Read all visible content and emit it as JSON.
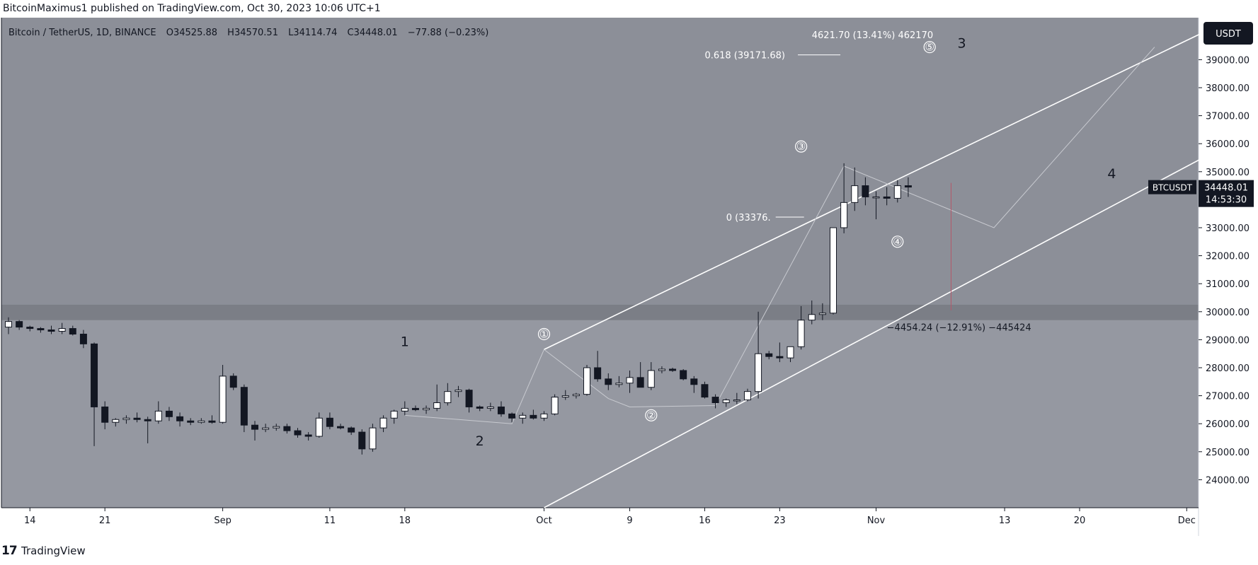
{
  "header": {
    "publish_line": "BitcoinMaximus1 published on TradingView.com, Oct 30, 2023 10:06 UTC+1"
  },
  "legend": {
    "symbol": "Bitcoin / TetherUS, 1D, BINANCE",
    "o_label": "O",
    "o_value": "34525.88",
    "h_label": "H",
    "h_value": "34570.51",
    "l_label": "L",
    "l_value": "34114.74",
    "c_label": "C",
    "c_value": "34448.01",
    "change": "−77.88 (−0.23%)"
  },
  "currency_button": "USDT",
  "price_label": {
    "ticker": "BTCUSDT",
    "price": "34448.01",
    "countdown": "14:53:30"
  },
  "footer": {
    "brand": "TradingView"
  },
  "colors": {
    "plot_bg": "#9598a1",
    "upper_bg": "#8c8f98",
    "support_band": "#7b7e86",
    "candle_up": "#ffffff",
    "candle_down": "#131722",
    "axis_bg": "#ffffff",
    "label_bg": "#131722"
  },
  "chart_data": {
    "type": "candlestick",
    "ylim": [
      23000,
      40500
    ],
    "y_ticks": [
      24000,
      25000,
      26000,
      27000,
      28000,
      29000,
      30000,
      31000,
      32000,
      33000,
      34000,
      35000,
      36000,
      37000,
      38000,
      39000
    ],
    "y_tick_labels": [
      "24000.00",
      "25000.00",
      "26000.00",
      "27000.00",
      "28000.00",
      "29000.00",
      "30000.00",
      "31000.00",
      "32000.00",
      "33000.00",
      "34000.00",
      "35000.00",
      "36000.00",
      "37000.00",
      "38000.00",
      "39000.00"
    ],
    "x_tick_labels": [
      {
        "day": 2,
        "label": "14"
      },
      {
        "day": 9,
        "label": "21"
      },
      {
        "day": 20,
        "label": "Sep"
      },
      {
        "day": 30,
        "label": "11"
      },
      {
        "day": 37,
        "label": "18"
      },
      {
        "day": 50,
        "label": "Oct"
      },
      {
        "day": 58,
        "label": "9"
      },
      {
        "day": 65,
        "label": "16"
      },
      {
        "day": 72,
        "label": "23"
      },
      {
        "day": 81,
        "label": "Nov"
      },
      {
        "day": 93,
        "label": "13"
      },
      {
        "day": 100,
        "label": "20"
      },
      {
        "day": 110,
        "label": "Dec"
      }
    ],
    "candles": [
      [
        29450,
        29800,
        29200,
        29650
      ],
      [
        29650,
        29700,
        29350,
        29450
      ],
      [
        29450,
        29500,
        29300,
        29400
      ],
      [
        29400,
        29450,
        29250,
        29350
      ],
      [
        29350,
        29500,
        29200,
        29300
      ],
      [
        29300,
        29600,
        29200,
        29400
      ],
      [
        29400,
        29500,
        29150,
        29200
      ],
      [
        29200,
        29350,
        28700,
        28850
      ],
      [
        28850,
        28900,
        25200,
        26600
      ],
      [
        26600,
        26800,
        25800,
        26050
      ],
      [
        26050,
        26200,
        25900,
        26150
      ],
      [
        26150,
        26300,
        26000,
        26200
      ],
      [
        26200,
        26400,
        26050,
        26150
      ],
      [
        26150,
        26250,
        25300,
        26100
      ],
      [
        26100,
        26800,
        26000,
        26450
      ],
      [
        26450,
        26600,
        26100,
        26250
      ],
      [
        26250,
        26400,
        25900,
        26100
      ],
      [
        26100,
        26200,
        25950,
        26050
      ],
      [
        26050,
        26200,
        26000,
        26100
      ],
      [
        26100,
        26300,
        26000,
        26050
      ],
      [
        26050,
        28100,
        26000,
        27700
      ],
      [
        27700,
        27800,
        27200,
        27300
      ],
      [
        27300,
        27400,
        25700,
        25950
      ],
      [
        25950,
        26100,
        25400,
        25800
      ],
      [
        25800,
        26000,
        25700,
        25850
      ],
      [
        25850,
        26000,
        25750,
        25900
      ],
      [
        25900,
        26000,
        25650,
        25750
      ],
      [
        25750,
        25850,
        25500,
        25600
      ],
      [
        25600,
        25700,
        25400,
        25550
      ],
      [
        25550,
        26400,
        25500,
        26200
      ],
      [
        26200,
        26400,
        25800,
        25900
      ],
      [
        25900,
        26000,
        25800,
        25850
      ],
      [
        25850,
        25900,
        25600,
        25700
      ],
      [
        25700,
        25800,
        24900,
        25100
      ],
      [
        25100,
        26000,
        25000,
        25850
      ],
      [
        25850,
        26300,
        25700,
        26200
      ],
      [
        26200,
        26500,
        26000,
        26450
      ],
      [
        26450,
        26800,
        26300,
        26550
      ],
      [
        26550,
        26650,
        26450,
        26500
      ],
      [
        26500,
        26650,
        26350,
        26550
      ],
      [
        26550,
        27400,
        26450,
        26750
      ],
      [
        26750,
        27450,
        26650,
        27150
      ],
      [
        27150,
        27350,
        26950,
        27200
      ],
      [
        27200,
        27250,
        26400,
        26600
      ],
      [
        26600,
        26650,
        26450,
        26550
      ],
      [
        26550,
        26750,
        26450,
        26600
      ],
      [
        26600,
        26800,
        26250,
        26350
      ],
      [
        26350,
        26400,
        26050,
        26200
      ],
      [
        26200,
        26400,
        26000,
        26300
      ],
      [
        26300,
        26500,
        26150,
        26200
      ],
      [
        26200,
        26450,
        26100,
        26350
      ],
      [
        26350,
        27050,
        26300,
        26950
      ],
      [
        26950,
        27200,
        26850,
        27000
      ],
      [
        27000,
        27100,
        26900,
        27050
      ],
      [
        27050,
        28100,
        27000,
        28000
      ],
      [
        28000,
        28600,
        27500,
        27600
      ],
      [
        27600,
        27800,
        27200,
        27400
      ],
      [
        27400,
        27700,
        27300,
        27450
      ],
      [
        27450,
        27900,
        27100,
        27650
      ],
      [
        27650,
        28200,
        27300,
        27300
      ],
      [
        27300,
        28200,
        27200,
        27900
      ],
      [
        27900,
        28050,
        27800,
        27950
      ],
      [
        27950,
        28000,
        27850,
        27900
      ],
      [
        27900,
        27950,
        27550,
        27600
      ],
      [
        27600,
        27700,
        27100,
        27400
      ],
      [
        27400,
        27500,
        26900,
        26950
      ],
      [
        26950,
        27050,
        26550,
        26750
      ],
      [
        26750,
        26900,
        26600,
        26850
      ],
      [
        26850,
        27100,
        26700,
        26850
      ],
      [
        26850,
        27250,
        26800,
        27150
      ],
      [
        27150,
        30000,
        26900,
        28500
      ],
      [
        28500,
        28600,
        28300,
        28400
      ],
      [
        28400,
        28900,
        28200,
        28350
      ],
      [
        28350,
        28700,
        28200,
        28750
      ],
      [
        28750,
        30200,
        28650,
        29700
      ],
      [
        29700,
        30400,
        29550,
        29900
      ],
      [
        29900,
        30300,
        29700,
        29950
      ],
      [
        29950,
        33000,
        29900,
        33000
      ],
      [
        33000,
        35300,
        32800,
        33900
      ],
      [
        33900,
        35150,
        33600,
        34500
      ],
      [
        34500,
        34800,
        33800,
        34100
      ],
      [
        34100,
        34300,
        33300,
        34100
      ],
      [
        34100,
        34450,
        33800,
        34050
      ],
      [
        34050,
        34700,
        33900,
        34500
      ],
      [
        34500,
        34800,
        34100,
        34450
      ]
    ],
    "channel_upper": {
      "from": [
        50,
        28650
      ],
      "to": [
        128,
        43000
      ]
    },
    "channel_lower": {
      "from": [
        50,
        23000
      ],
      "to": [
        114,
        36000
      ]
    },
    "support_zone": [
      29700,
      30250
    ],
    "wave_path": [
      [
        37,
        26300
      ],
      [
        47,
        26000
      ],
      [
        50,
        28650
      ],
      [
        56,
        26900
      ],
      [
        58,
        26600
      ],
      [
        66,
        26650
      ],
      [
        78,
        35200
      ],
      [
        92,
        33000
      ],
      [
        107,
        39450
      ]
    ],
    "wave_labels": [
      {
        "text": "1",
        "day": 37,
        "price": 28950,
        "style": "plain"
      },
      {
        "text": "2",
        "day": 44,
        "price": 25400,
        "style": "plain"
      },
      {
        "text": "①",
        "day": 50,
        "price": 29200,
        "style": "circle"
      },
      {
        "text": "②",
        "day": 60,
        "price": 26300,
        "style": "circle"
      },
      {
        "text": "③",
        "day": 74,
        "price": 35900,
        "style": "circle"
      },
      {
        "text": "④",
        "day": 83,
        "price": 32500,
        "style": "circle"
      },
      {
        "text": "⑤",
        "day": 86,
        "price": 39450,
        "style": "circle"
      },
      {
        "text": "3",
        "day": 89,
        "price": 39600,
        "style": "plain"
      },
      {
        "text": "4",
        "day": 103,
        "price": 34950,
        "style": "plain"
      }
    ],
    "annotations": [
      {
        "text": "0.618 (39171.68)",
        "day": 65,
        "price": 39171.68,
        "line": true
      },
      {
        "text": "4621.70 (13.41%) 462170",
        "day": 75,
        "price": 39900,
        "line": false
      },
      {
        "text": "0 (33376.",
        "day": 67,
        "price": 33380,
        "line": true
      },
      {
        "text": "−4454.24 (−12.91%) −445424",
        "day": 82,
        "price": 29450,
        "line": false
      }
    ],
    "measure_line": {
      "day": 88,
      "from": 34600,
      "to": 30050
    }
  }
}
